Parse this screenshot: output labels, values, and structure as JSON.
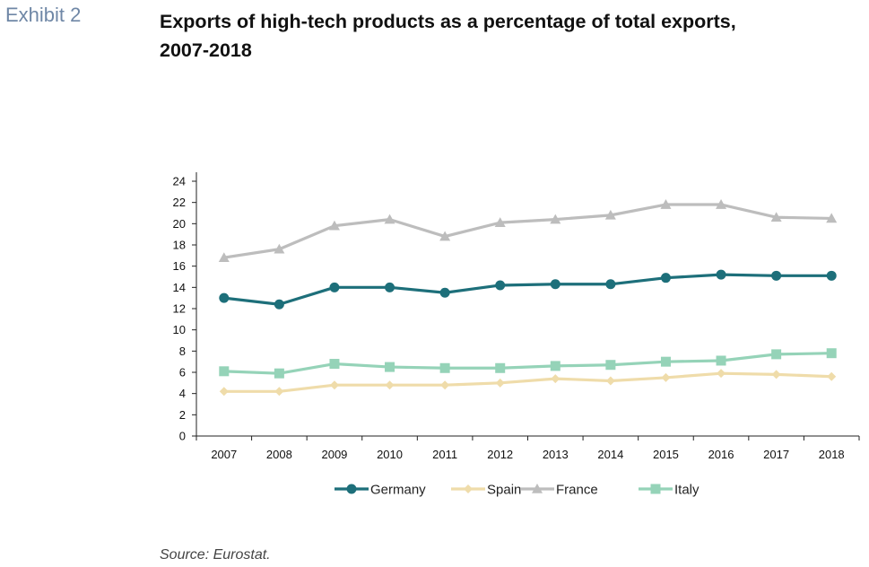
{
  "exhibit_label": "Exhibit 2",
  "title_line1": "Exports of high-tech products as a percentage of total exports,",
  "title_line2": "2007-2018",
  "source": "Source: Eurostat.",
  "chart_data": {
    "type": "line",
    "x": [
      "2007",
      "2008",
      "2009",
      "2010",
      "2011",
      "2012",
      "2013",
      "2014",
      "2015",
      "2016",
      "2017",
      "2018"
    ],
    "ylim": [
      0,
      24
    ],
    "yticks": [
      0,
      2,
      4,
      6,
      8,
      10,
      12,
      14,
      16,
      18,
      20,
      22,
      24
    ],
    "grid": false,
    "legend_position": "bottom",
    "series": [
      {
        "name": "Germany",
        "color": "#1d6f7a",
        "marker": "circle",
        "values": [
          13.0,
          12.4,
          14.0,
          14.0,
          13.5,
          14.2,
          14.3,
          14.3,
          14.9,
          15.2,
          15.1,
          15.1
        ]
      },
      {
        "name": "Spain",
        "color": "#efdcaa",
        "marker": "diamond",
        "values": [
          4.2,
          4.2,
          4.8,
          4.8,
          4.8,
          5.0,
          5.4,
          5.2,
          5.5,
          5.9,
          5.8,
          5.6
        ]
      },
      {
        "name": "France",
        "color": "#bdbdbd",
        "marker": "triangle",
        "values": [
          16.8,
          17.6,
          19.8,
          20.4,
          18.8,
          20.1,
          20.4,
          20.8,
          21.8,
          21.8,
          20.6,
          20.5
        ]
      },
      {
        "name": "Italy",
        "color": "#95d3b8",
        "marker": "square",
        "values": [
          6.1,
          5.9,
          6.8,
          6.5,
          6.4,
          6.4,
          6.6,
          6.7,
          7.0,
          7.1,
          7.7,
          7.8
        ]
      }
    ]
  }
}
